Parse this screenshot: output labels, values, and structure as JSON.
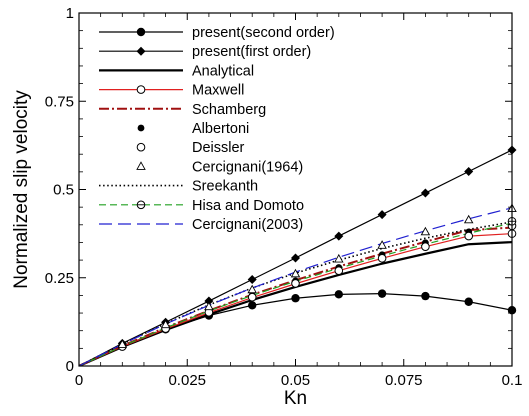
{
  "chart_data": {
    "type": "line",
    "xlabel": "Kn",
    "ylabel": "Normalized slip velocity",
    "xlim": [
      0,
      0.1
    ],
    "ylim": [
      0,
      1
    ],
    "xticks": [
      0,
      0.025,
      0.05,
      0.075,
      0.1
    ],
    "xtick_labels": [
      "0",
      "0.025",
      "0.05",
      "0.075",
      "0.1"
    ],
    "yticks": [
      0,
      0.25,
      0.5,
      0.75,
      1
    ],
    "ytick_labels": [
      "0",
      "0.25",
      "0.5",
      "0.75",
      "1"
    ],
    "grid": false,
    "legend_position": "top-left",
    "series": [
      {
        "name": "present(second order)",
        "style": "line+markers",
        "line_dash": "solid",
        "line_color": "#000000",
        "marker": "filled-circle",
        "marker_color": "#000000",
        "x": [
          0,
          0.01,
          0.02,
          0.03,
          0.04,
          0.05,
          0.06,
          0.07,
          0.08,
          0.09,
          0.1
        ],
        "y": [
          0,
          0.056,
          0.104,
          0.143,
          0.172,
          0.192,
          0.203,
          0.205,
          0.198,
          0.182,
          0.158
        ]
      },
      {
        "name": "present(first order)",
        "style": "line+markers",
        "line_dash": "solid",
        "line_color": "#000000",
        "marker": "filled-diamond",
        "marker_color": "#000000",
        "x": [
          0,
          0.01,
          0.02,
          0.03,
          0.04,
          0.05,
          0.06,
          0.07,
          0.08,
          0.09,
          0.1
        ],
        "y": [
          0,
          0.064,
          0.124,
          0.184,
          0.245,
          0.306,
          0.368,
          0.429,
          0.49,
          0.551,
          0.612
        ]
      },
      {
        "name": "Analytical",
        "style": "line",
        "line_dash": "solid",
        "line_width": 2.2,
        "line_color": "#000000",
        "x": [
          0,
          0.01,
          0.02,
          0.03,
          0.04,
          0.05,
          0.06,
          0.07,
          0.08,
          0.09,
          0.1
        ],
        "y": [
          0,
          0.054,
          0.102,
          0.146,
          0.187,
          0.224,
          0.258,
          0.29,
          0.318,
          0.345,
          0.351
        ]
      },
      {
        "name": "Maxwell",
        "style": "line+markers",
        "line_dash": "solid",
        "line_color": "#e02020",
        "marker": "open-circle",
        "marker_color": "#000000",
        "marker_x": [
          0.1
        ],
        "marker_y": [
          0.375
        ],
        "x": [
          0,
          0.01,
          0.02,
          0.03,
          0.04,
          0.05,
          0.06,
          0.07,
          0.08,
          0.09,
          0.1
        ],
        "y": [
          0,
          0.055,
          0.105,
          0.151,
          0.194,
          0.233,
          0.27,
          0.305,
          0.338,
          0.368,
          0.375
        ]
      },
      {
        "name": "Schamberg",
        "style": "line",
        "line_dash": "dashdot",
        "line_width": 2,
        "line_color": "#a01010",
        "x": [
          0,
          0.01,
          0.02,
          0.03,
          0.04,
          0.05,
          0.06,
          0.07,
          0.08,
          0.09,
          0.1
        ],
        "y": [
          0,
          0.057,
          0.109,
          0.157,
          0.202,
          0.243,
          0.282,
          0.318,
          0.352,
          0.385,
          0.392
        ]
      },
      {
        "name": "Albertoni",
        "style": "markers",
        "marker": "filled-circle-small",
        "marker_color": "#000000",
        "x": [
          0.01,
          0.02,
          0.03,
          0.04,
          0.05,
          0.06,
          0.07,
          0.08,
          0.09,
          0.1
        ],
        "y": [
          0.058,
          0.109,
          0.156,
          0.2,
          0.241,
          0.279,
          0.315,
          0.349,
          0.38,
          0.41
        ]
      },
      {
        "name": "Deissler",
        "style": "markers",
        "marker": "open-circle",
        "marker_color": "#000000",
        "x": [
          0.01,
          0.02,
          0.03,
          0.04,
          0.05,
          0.06,
          0.07,
          0.08,
          0.09,
          0.1
        ],
        "y": [
          0.055,
          0.106,
          0.152,
          0.195,
          0.234,
          0.27,
          0.305,
          0.338,
          0.368,
          0.397
        ]
      },
      {
        "name": "Cercignani(1964)",
        "style": "markers",
        "marker": "open-triangle",
        "marker_color": "#000000",
        "x": [
          0.01,
          0.02,
          0.03,
          0.04,
          0.05,
          0.06,
          0.07,
          0.08,
          0.09,
          0.1
        ],
        "y": [
          0.061,
          0.117,
          0.168,
          0.216,
          0.261,
          0.303,
          0.342,
          0.38,
          0.414,
          0.446
        ]
      },
      {
        "name": "Sreekanth",
        "style": "line",
        "line_dash": "dotted",
        "line_width": 1.6,
        "line_color": "#000000",
        "x": [
          0,
          0.01,
          0.02,
          0.03,
          0.04,
          0.05,
          0.06,
          0.07,
          0.08,
          0.09,
          0.1
        ],
        "y": [
          0,
          0.062,
          0.12,
          0.173,
          0.221,
          0.263,
          0.3,
          0.333,
          0.362,
          0.387,
          0.408
        ]
      },
      {
        "name": "Hisa and Domoto",
        "style": "line+markers",
        "line_dash": "dashed",
        "line_color": "#20a020",
        "marker": "open-circle-plus",
        "marker_color": "#000000",
        "marker_x": [
          0.1
        ],
        "marker_y": [
          0.41
        ],
        "x": [
          0,
          0.01,
          0.02,
          0.03,
          0.04,
          0.05,
          0.06,
          0.07,
          0.08,
          0.09,
          0.1
        ],
        "y": [
          0,
          0.056,
          0.108,
          0.156,
          0.2,
          0.24,
          0.277,
          0.312,
          0.345,
          0.376,
          0.405
        ]
      },
      {
        "name": "Cercignani(2003)",
        "style": "line",
        "line_dash": "longdash",
        "line_color": "#2020d0",
        "x": [
          0,
          0.01,
          0.02,
          0.03,
          0.04,
          0.05,
          0.06,
          0.07,
          0.08,
          0.09,
          0.1
        ],
        "y": [
          0,
          0.062,
          0.119,
          0.172,
          0.221,
          0.266,
          0.308,
          0.347,
          0.383,
          0.417,
          0.448
        ]
      }
    ]
  }
}
